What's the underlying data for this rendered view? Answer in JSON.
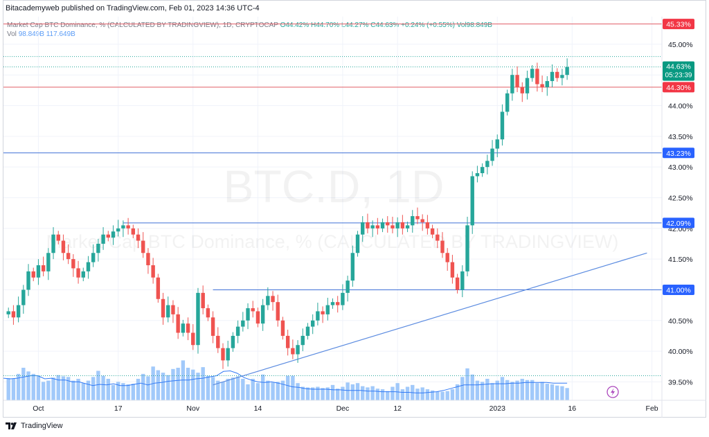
{
  "header": {
    "published": "Bitacademyweb published on TradingView.com, Feb 01, 2023 14:36 UTC-4"
  },
  "legend": {
    "symbol": "Market Cap BTC Dominance, % (CALCULATED BY TRADINGVIEW), 1D, CRYPTOCAP",
    "open": "O44.42%",
    "high": "H44.70%",
    "low": "L44.27%",
    "close": "C44.63%",
    "change": "+0.24% (+0.55%)",
    "vol": "Vol98.849B",
    "vol_label": "Vol",
    "vol_value": "98.849B",
    "vol_ma": "117.649B"
  },
  "watermark": {
    "ticker": "BTC.D, 1D",
    "name": "Market Cap BTC Dominance, % (CALCULATED BY TRADINGVIEW)"
  },
  "footer": {
    "brand": "TradingView"
  },
  "colors": {
    "up": "#26a69a",
    "down": "#ef5350",
    "volume": "#90bff9",
    "volume_ma": "#3179f5",
    "hline_red": "#e05c64",
    "hline_blue": "#3d6fd6",
    "trend": "#5b8be0",
    "accent": "#089981"
  },
  "chart_data": {
    "type": "candlestick",
    "timeframe": "1D",
    "y_axis": {
      "min": 39.2,
      "max": 45.45,
      "ticks": [
        "45.00%",
        "44.50%",
        "44.00%",
        "43.50%",
        "43.00%",
        "42.50%",
        "42.00%",
        "41.50%",
        "41.00%",
        "40.50%",
        "40.00%",
        "39.50%"
      ]
    },
    "x_axis": {
      "start": "2022-09-24",
      "end": "2023-02-03",
      "ticks": [
        {
          "label": "Oct",
          "date": "2022-10-01"
        },
        {
          "label": "17",
          "date": "2022-10-17"
        },
        {
          "label": "Nov",
          "date": "2022-11-01"
        },
        {
          "label": "14",
          "date": "2022-11-14"
        },
        {
          "label": "Dec",
          "date": "2022-12-01"
        },
        {
          "label": "12",
          "date": "2022-12-12"
        },
        {
          "label": "2023",
          "date": "2023-01-01"
        },
        {
          "label": "16",
          "date": "2023-01-16"
        },
        {
          "label": "Feb",
          "date": "2023-02-01"
        }
      ]
    },
    "price_labels": [
      {
        "text": "45.33%",
        "value": 45.33,
        "kind": "red"
      },
      {
        "text": "44.63%",
        "value": 44.63,
        "kind": "last",
        "countdown": "05:23:39"
      },
      {
        "text": "44.30%",
        "value": 44.3,
        "kind": "red"
      },
      {
        "text": "43.23%",
        "value": 43.23,
        "kind": "blue"
      },
      {
        "text": "42.09%",
        "value": 42.09,
        "kind": "blue"
      },
      {
        "text": "41.00%",
        "value": 41.0,
        "kind": "blue"
      }
    ],
    "horizontal_lines": [
      {
        "value": 45.33,
        "color": "red"
      },
      {
        "value": 44.3,
        "color": "red"
      },
      {
        "value": 43.23,
        "color": "blue"
      },
      {
        "value": 42.09,
        "color": "blue",
        "from": "2022-10-18"
      },
      {
        "value": 41.0,
        "color": "blue",
        "from": "2022-11-05"
      }
    ],
    "dotted_lines": [
      {
        "value": 44.8
      },
      {
        "value": 44.63
      },
      {
        "value": 39.6
      }
    ],
    "trendline": {
      "from": {
        "date": "2022-11-05",
        "value": 39.45
      },
      "to": {
        "date": "2023-01-31",
        "value": 41.6
      }
    },
    "closes": [
      40.65,
      40.55,
      40.75,
      41.0,
      41.3,
      41.2,
      41.4,
      41.3,
      41.6,
      41.9,
      41.8,
      41.6,
      41.5,
      41.35,
      41.2,
      41.3,
      41.45,
      41.6,
      41.75,
      41.9,
      41.85,
      41.95,
      42.0,
      42.05,
      42.0,
      41.9,
      41.8,
      41.6,
      41.4,
      41.2,
      40.85,
      40.55,
      40.75,
      40.6,
      40.3,
      40.45,
      40.3,
      40.1,
      40.95,
      40.7,
      40.55,
      40.25,
      40.05,
      39.85,
      40.05,
      40.25,
      40.4,
      40.5,
      40.7,
      40.65,
      40.45,
      40.75,
      40.9,
      40.8,
      40.5,
      40.25,
      40.05,
      39.95,
      40.1,
      40.25,
      40.4,
      40.5,
      40.65,
      40.6,
      40.75,
      40.8,
      40.75,
      40.95,
      41.15,
      41.6,
      41.9,
      42.1,
      42.0,
      42.05,
      42.0,
      42.1,
      42.05,
      42.0,
      42.1,
      42.0,
      42.05,
      42.2,
      42.15,
      42.1,
      42.0,
      41.9,
      41.8,
      41.6,
      41.45,
      41.2,
      41.0,
      41.3,
      42.05,
      42.85,
      42.9,
      43.0,
      43.1,
      43.3,
      43.45,
      43.9,
      44.2,
      44.5,
      44.3,
      44.2,
      44.45,
      44.6,
      44.35,
      44.3,
      44.4,
      44.55,
      44.45,
      44.5,
      44.63
    ],
    "volumes": [
      39.56,
      39.55,
      39.63,
      39.73,
      39.67,
      39.63,
      39.6,
      39.5,
      39.52,
      39.57,
      39.61,
      39.59,
      39.58,
      39.52,
      39.55,
      39.48,
      39.52,
      39.58,
      39.68,
      39.6,
      39.55,
      39.45,
      39.5,
      39.48,
      39.46,
      39.47,
      39.55,
      39.63,
      39.59,
      39.75,
      39.69,
      39.65,
      39.61,
      39.71,
      39.73,
      39.85,
      39.73,
      39.7,
      39.65,
      39.74,
      39.6,
      39.58,
      39.52,
      39.5,
      39.55,
      39.57,
      39.59,
      39.55,
      39.46,
      39.55,
      39.48,
      39.62,
      39.52,
      39.49,
      39.5,
      39.52,
      39.6,
      39.6,
      39.48,
      39.42,
      39.41,
      39.41,
      39.42,
      39.4,
      39.41,
      39.45,
      39.39,
      39.42,
      39.49,
      39.46,
      39.48,
      39.43,
      39.41,
      39.43,
      39.39,
      39.38,
      39.35,
      39.42,
      39.48,
      39.38,
      39.42,
      39.45,
      39.39,
      39.41,
      39.38,
      39.36,
      39.34,
      39.34,
      39.35,
      39.38,
      39.46,
      39.58,
      39.72,
      39.62,
      39.52,
      39.5,
      39.55,
      39.48,
      39.52,
      39.58,
      39.53,
      39.5,
      39.52,
      39.55,
      39.53,
      39.53,
      39.48,
      39.5,
      39.47,
      39.46,
      39.44,
      39.43,
      39.4
    ],
    "volume_ma": [
      39.56,
      39.55,
      39.56,
      39.58,
      39.6,
      39.6,
      39.55,
      39.56,
      39.53,
      39.53,
      39.5,
      39.5,
      39.47,
      39.44,
      39.46,
      39.45,
      39.47,
      39.44,
      39.44,
      39.46,
      39.48,
      39.45,
      39.48,
      39.49,
      39.51,
      39.52,
      39.53,
      39.53,
      39.55,
      39.56,
      39.58,
      39.6,
      39.67,
      39.68,
      39.64,
      39.57,
      39.53,
      39.5,
      39.49,
      39.5,
      39.48,
      39.45,
      39.42,
      39.41,
      39.39,
      39.38,
      39.38,
      39.38,
      39.37,
      39.37,
      39.36,
      39.36,
      39.36,
      39.35,
      39.35,
      39.34,
      39.34,
      39.34,
      39.33,
      39.33,
      39.32,
      39.32,
      39.33,
      39.34,
      39.36,
      39.39,
      39.42,
      39.45,
      39.45,
      39.45,
      39.46,
      39.47,
      39.47,
      39.47,
      39.48,
      39.48,
      39.49,
      39.49,
      39.49,
      39.49,
      39.48,
      39.48,
      39.48
    ]
  }
}
